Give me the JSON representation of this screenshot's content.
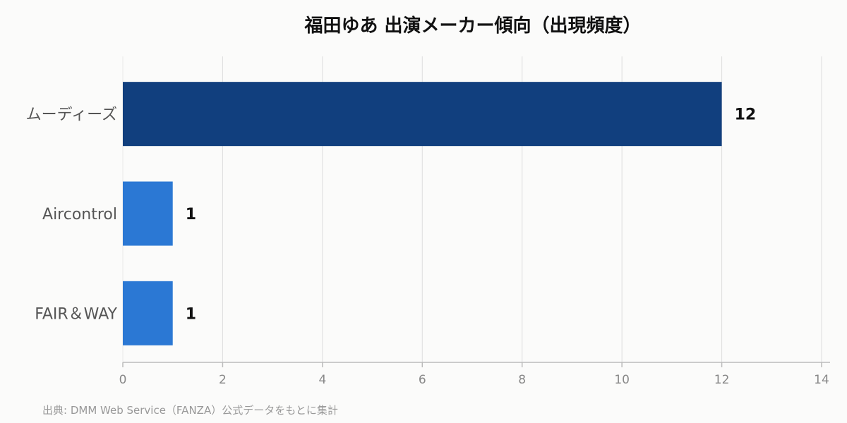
{
  "chart_data": {
    "type": "bar",
    "orientation": "horizontal",
    "title": "福田ゆあ 出演メーカー傾向（出現頻度）",
    "categories": [
      "ムーディーズ",
      "Aircontrol",
      "FAIR＆WAY"
    ],
    "values": [
      12,
      1,
      1
    ],
    "bar_colors": [
      "#113f7e",
      "#2b78d4",
      "#2b78d4"
    ],
    "xlim": [
      0,
      14
    ],
    "xticks": [
      0,
      2,
      4,
      6,
      8,
      10,
      12,
      14
    ],
    "grid": true,
    "legend": "none"
  },
  "source": "出典: DMM Web Service（FANZA）公式データをもとに集計"
}
